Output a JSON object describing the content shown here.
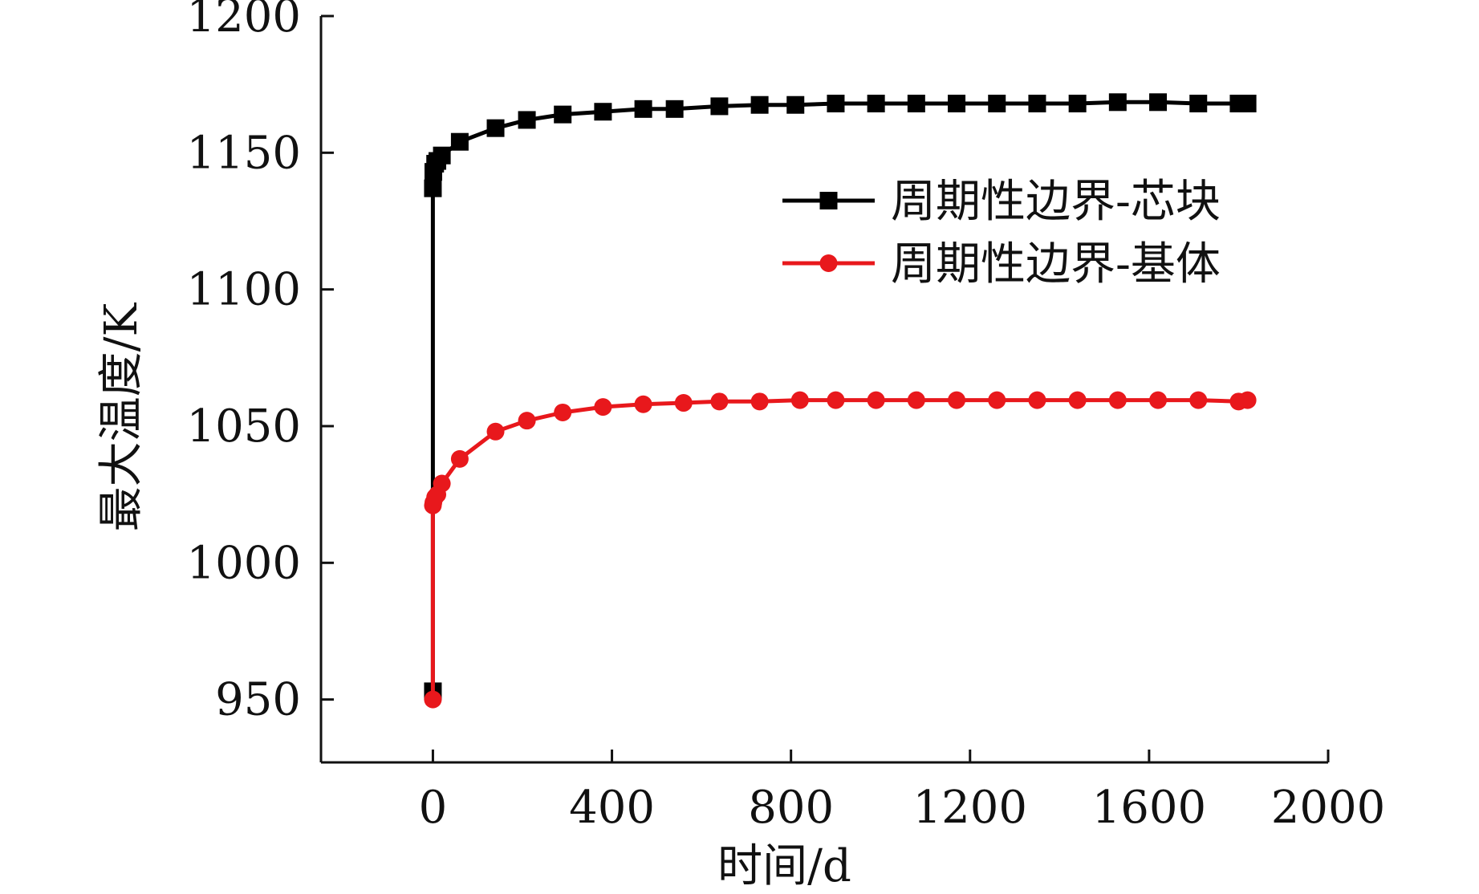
{
  "chart_data": {
    "type": "line",
    "title": "",
    "xlabel": "时间/d",
    "ylabel": "最大温度/K",
    "xlim": [
      -250,
      2000
    ],
    "ylim": [
      927,
      1200
    ],
    "x_ticks": [
      0,
      400,
      800,
      1200,
      1600,
      2000
    ],
    "y_ticks": [
      950,
      1000,
      1050,
      1100,
      1150,
      1200
    ],
    "grid": false,
    "legend_position": "top-right",
    "series": [
      {
        "name": "周期性边界-芯块",
        "color": "#000000",
        "marker": "square",
        "x": [
          0,
          0,
          1,
          5,
          10,
          20,
          60,
          140,
          210,
          290,
          380,
          470,
          540,
          640,
          730,
          810,
          900,
          990,
          1080,
          1170,
          1260,
          1350,
          1440,
          1530,
          1620,
          1710,
          1800,
          1820
        ],
        "y": [
          953,
          1137,
          1143,
          1146,
          1147,
          1149,
          1154,
          1159,
          1162,
          1164,
          1165,
          1166,
          1166,
          1167,
          1167.5,
          1167.5,
          1168,
          1168,
          1168,
          1168,
          1168,
          1168,
          1168,
          1168.5,
          1168.5,
          1168,
          1168,
          1168
        ]
      },
      {
        "name": "周期性边界-基体",
        "color": "#e8181c",
        "marker": "circle",
        "x": [
          0,
          0,
          1,
          5,
          10,
          20,
          60,
          140,
          210,
          290,
          380,
          470,
          560,
          640,
          730,
          820,
          900,
          990,
          1080,
          1170,
          1260,
          1350,
          1440,
          1530,
          1620,
          1710,
          1800,
          1820
        ],
        "y": [
          950,
          1021,
          1022,
          1024,
          1025,
          1029,
          1038,
          1048,
          1052,
          1055,
          1057,
          1058,
          1058.5,
          1059,
          1059,
          1059.5,
          1059.5,
          1059.5,
          1059.5,
          1059.5,
          1059.5,
          1059.5,
          1059.5,
          1059.5,
          1059.5,
          1059.5,
          1059,
          1059.5
        ]
      }
    ]
  }
}
